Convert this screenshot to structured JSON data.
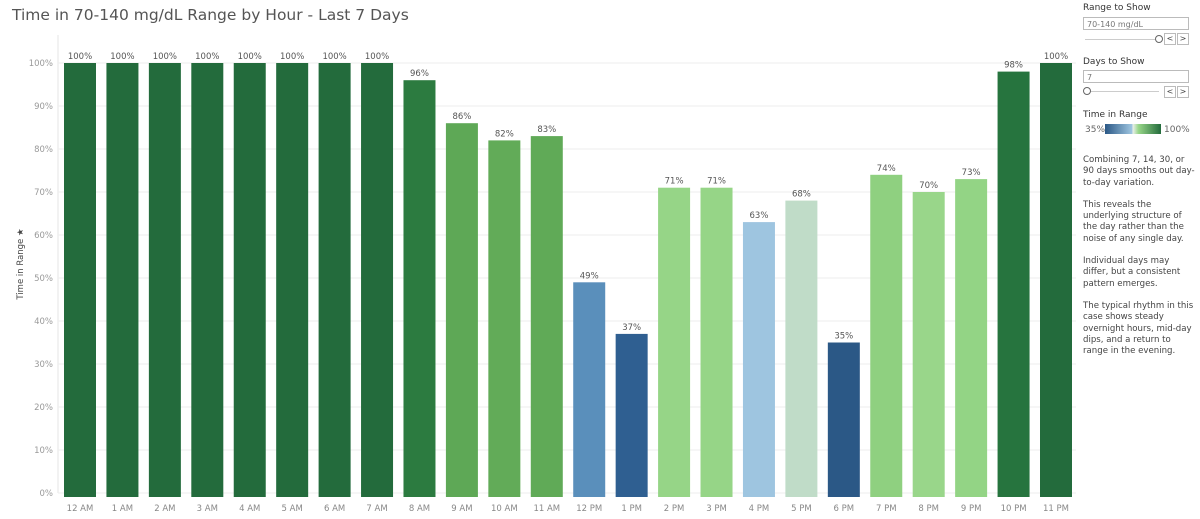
{
  "chart_data": {
    "type": "bar",
    "title": "Time in 70-140 mg/dL Range by Hour - Last 7 Days",
    "ylabel": "Time in Range",
    "xlabel": "",
    "ylim": [
      0,
      100
    ],
    "yticks": [
      "0%",
      "10%",
      "20%",
      "30%",
      "40%",
      "50%",
      "60%",
      "70%",
      "80%",
      "90%",
      "100%"
    ],
    "categories": [
      "12 AM",
      "1 AM",
      "2 AM",
      "3 AM",
      "4 AM",
      "5 AM",
      "6 AM",
      "7 AM",
      "8 AM",
      "9 AM",
      "10 AM",
      "11 AM",
      "12 PM",
      "1 PM",
      "2 PM",
      "3 PM",
      "4 PM",
      "5 PM",
      "6 PM",
      "7 PM",
      "8 PM",
      "9 PM",
      "10 PM",
      "11 PM"
    ],
    "values": [
      100,
      100,
      100,
      100,
      100,
      100,
      100,
      100,
      96,
      86,
      82,
      83,
      49,
      37,
      71,
      71,
      63,
      68,
      35,
      74,
      70,
      73,
      98,
      100
    ],
    "data_labels": [
      "100%",
      "100%",
      "100%",
      "100%",
      "100%",
      "100%",
      "100%",
      "100%",
      "96%",
      "86%",
      "82%",
      "83%",
      "49%",
      "37%",
      "71%",
      "71%",
      "63%",
      "68%",
      "35%",
      "74%",
      "70%",
      "73%",
      "98%",
      "100%"
    ],
    "colors": [
      "#236b3c",
      "#236b3c",
      "#236b3c",
      "#236b3c",
      "#236b3c",
      "#236b3c",
      "#236b3c",
      "#236b3c",
      "#2c7b40",
      "#5ea856",
      "#62ab58",
      "#60aa57",
      "#5a8fbb",
      "#2f5f91",
      "#96d587",
      "#96d587",
      "#9ec5e0",
      "#c0dcc8",
      "#2b5886",
      "#8fd080",
      "#99d68a",
      "#93d485",
      "#26743e",
      "#236b3c"
    ],
    "grid": true
  },
  "sidebar": {
    "range_label": "Range to Show",
    "range_value": "70-140 mg/dL",
    "days_label": "Days to Show",
    "days_value": "7",
    "prev": "<",
    "next": ">",
    "legend_title": "Time in Range",
    "legend_min": "35%",
    "legend_max": "100%",
    "notes": [
      "Combining 7, 14, 30, or 90 days smooths out day-to-day variation.",
      "This reveals the underlying structure of the day rather than the noise of any single day.",
      "Individual days may differ, but a consistent pattern emerges.",
      "The typical rhythm in this case shows steady overnight hours, mid-day dips, and a return to range in the evening."
    ]
  }
}
